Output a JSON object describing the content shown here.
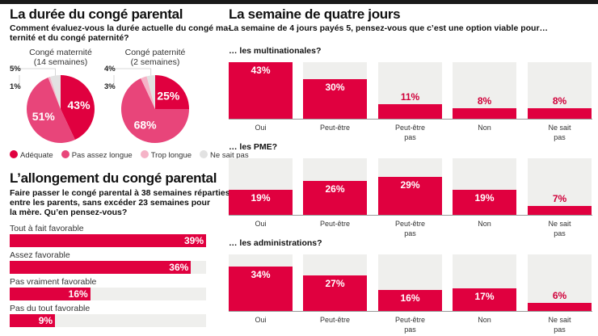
{
  "colors": {
    "adequate": "#e0003f",
    "pas_assez": "#e8457a",
    "trop": "#f5b3c7",
    "nsp": "#e2e2e2",
    "bar": "#e0003f",
    "track": "#efefed"
  },
  "left_top": {
    "title": "La durée du congé parental",
    "question_line1": "Comment évaluez-vous la durée actuelle du congé ma-",
    "question_line2": "ternité et du congé paternité?"
  },
  "left_bottom": {
    "title": "L’allongement du congé parental",
    "question_line1": "Faire passer le congé parental à 38 semaines réparties",
    "question_line2": "entre les parents, sans excéder 23 semaines pour",
    "question_line3": "la mère. Qu’en pensez-vous?"
  },
  "right": {
    "title": "La semaine de quatre jours",
    "question": "La semaine de 4 jours payés 5, pensez-vous que c’est une option viable pour…"
  },
  "chart_data": [
    {
      "type": "pie",
      "title": "Congé maternité",
      "subtitle": "(14 semaines)",
      "categories": [
        "Adéquate",
        "Pas assez longue",
        "Trop longue",
        "Ne sait pas"
      ],
      "values": [
        43,
        51,
        1,
        5
      ],
      "labels": [
        "43%",
        "51%",
        "1%",
        "5%"
      ],
      "legend": "bottom"
    },
    {
      "type": "pie",
      "title": "Congé paternité",
      "subtitle": "(2 semaines)",
      "categories": [
        "Adéquate",
        "Pas assez longue",
        "Trop longue",
        "Ne sait pas"
      ],
      "values": [
        25,
        68,
        3,
        4
      ],
      "labels": [
        "25%",
        "68%",
        "3%",
        "4%"
      ],
      "legend": "bottom"
    },
    {
      "type": "bar",
      "orientation": "horizontal",
      "categories": [
        "Tout à fait favorable",
        "Assez favorable",
        "Pas vraiment favorable",
        "Pas du tout favorable"
      ],
      "values": [
        39,
        36,
        16,
        9
      ],
      "labels": [
        "39%",
        "36%",
        "16%",
        "9%"
      ]
    },
    {
      "type": "bar",
      "title": "… les multinationales?",
      "categories": [
        "Oui",
        "Peut-être",
        "Peut-être pas",
        "Non",
        "Ne sait pas"
      ],
      "values": [
        43,
        30,
        11,
        8,
        8
      ],
      "labels": [
        "43%",
        "30%",
        "11%",
        "8%",
        "8%"
      ]
    },
    {
      "type": "bar",
      "title": "… les PME?",
      "categories": [
        "Oui",
        "Peut-être",
        "Peut-être pas",
        "Non",
        "Ne sait pas"
      ],
      "values": [
        19,
        26,
        29,
        19,
        7
      ],
      "labels": [
        "19%",
        "26%",
        "29%",
        "19%",
        "7%"
      ]
    },
    {
      "type": "bar",
      "title": "… les administrations?",
      "categories": [
        "Oui",
        "Peut-être",
        "Peut-être pas",
        "Non",
        "Ne sait pas"
      ],
      "values": [
        34,
        27,
        16,
        17,
        6
      ],
      "labels": [
        "34%",
        "27%",
        "16%",
        "17%",
        "6%"
      ]
    }
  ],
  "legend": [
    "Adéquate",
    "Pas assez longue",
    "Trop longue",
    "Ne sait pas"
  ]
}
